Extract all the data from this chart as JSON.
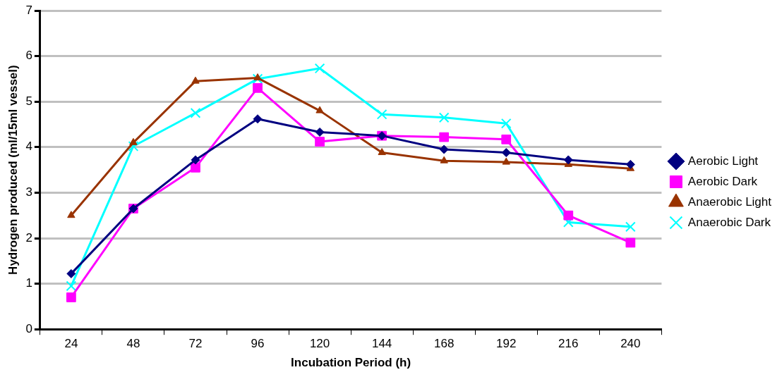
{
  "chart_data": {
    "type": "line",
    "xlabel": "Incubation Period (h)",
    "ylabel": "Hydrogen produced (ml/15ml vessel)",
    "categories": [
      "24",
      "48",
      "72",
      "96",
      "120",
      "144",
      "168",
      "192",
      "216",
      "240"
    ],
    "ylim": [
      0,
      7
    ],
    "yticks": [
      0,
      1,
      2,
      3,
      4,
      5,
      6,
      7
    ],
    "grid": "y",
    "legend": "right",
    "line_style": "solid",
    "series": [
      {
        "name": "Aerobic Light",
        "color": "#000080",
        "marker": "diamond",
        "values": [
          1.22,
          2.65,
          3.72,
          4.62,
          4.33,
          4.25,
          3.95,
          3.88,
          3.72,
          3.62
        ]
      },
      {
        "name": "Aerobic Dark",
        "color": "#ff00ff",
        "marker": "square",
        "values": [
          0.7,
          2.65,
          3.55,
          5.3,
          4.12,
          4.25,
          4.22,
          4.17,
          2.5,
          1.9
        ]
      },
      {
        "name": "Anaerobic Light",
        "color": "#993300",
        "marker": "triangle",
        "values": [
          2.5,
          4.1,
          5.45,
          5.52,
          4.8,
          3.88,
          3.7,
          3.67,
          3.62,
          3.53
        ]
      },
      {
        "name": "Anaerobic Dark",
        "color": "#00ffff",
        "marker": "cross",
        "values": [
          0.95,
          4.02,
          4.75,
          5.5,
          5.73,
          4.72,
          4.65,
          4.52,
          2.35,
          2.25
        ]
      }
    ]
  }
}
